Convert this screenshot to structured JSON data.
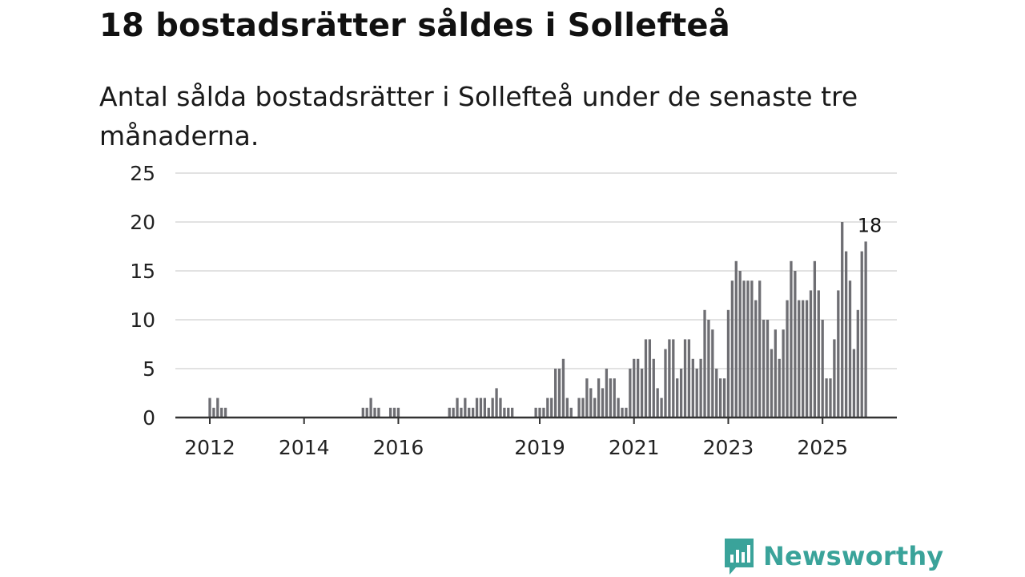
{
  "title": "18 bostadsrätter såldes i Sollefteå",
  "subtitle": "Antal sålda bostadsrätter i Sollefteå under de senaste tre månaderna.",
  "brand": {
    "name": "Newsworthy",
    "color": "#3aa39a",
    "icon": "chat-bar-chart-icon"
  },
  "chart_data": {
    "type": "bar",
    "title": "18 bostadsrätter såldes i Sollefteå",
    "xlabel": "",
    "ylabel": "",
    "ylim": [
      0,
      25
    ],
    "yticks": [
      0,
      5,
      10,
      15,
      20,
      25
    ],
    "xticks": [
      {
        "label": "2012",
        "month": 0
      },
      {
        "label": "2014",
        "month": 24
      },
      {
        "label": "2016",
        "month": 48
      },
      {
        "label": "2019",
        "month": 84
      },
      {
        "label": "2021",
        "month": 108
      },
      {
        "label": "2023",
        "month": 132
      },
      {
        "label": "2025",
        "month": 156
      }
    ],
    "series": [
      {
        "name": "Sålda bostadsrätter",
        "start": "2012-01",
        "frequency": "monthly",
        "values": [
          2,
          1,
          2,
          1,
          1,
          0,
          0,
          0,
          0,
          0,
          0,
          0,
          0,
          0,
          0,
          0,
          0,
          0,
          0,
          0,
          0,
          0,
          0,
          0,
          0,
          0,
          0,
          0,
          0,
          0,
          0,
          0,
          0,
          0,
          0,
          0,
          0,
          0,
          0,
          1,
          1,
          2,
          1,
          1,
          0,
          0,
          1,
          1,
          1,
          0,
          0,
          0,
          0,
          0,
          0,
          0,
          0,
          0,
          0,
          0,
          0,
          1,
          1,
          2,
          1,
          2,
          1,
          1,
          2,
          2,
          2,
          1,
          2,
          3,
          2,
          1,
          1,
          1,
          0,
          0,
          0,
          0,
          0,
          1,
          1,
          1,
          2,
          2,
          5,
          5,
          6,
          2,
          1,
          0,
          2,
          2,
          4,
          3,
          2,
          4,
          3,
          5,
          4,
          4,
          2,
          1,
          1,
          5,
          6,
          6,
          5,
          8,
          8,
          6,
          3,
          2,
          7,
          8,
          8,
          4,
          5,
          8,
          8,
          6,
          5,
          6,
          11,
          10,
          9,
          5,
          4,
          4,
          11,
          14,
          16,
          15,
          14,
          14,
          14,
          12,
          14,
          10,
          10,
          7,
          9,
          6,
          9,
          12,
          16,
          15,
          12,
          12,
          12,
          13,
          16,
          13,
          10,
          4,
          4,
          8,
          13,
          20,
          17,
          14,
          7,
          11,
          17,
          18
        ]
      }
    ],
    "highlight": {
      "index": 168,
      "value": 18,
      "label": "18",
      "color": "#19a39a"
    },
    "bar_color": "#6e6e73",
    "grid": true,
    "legend": "none"
  }
}
